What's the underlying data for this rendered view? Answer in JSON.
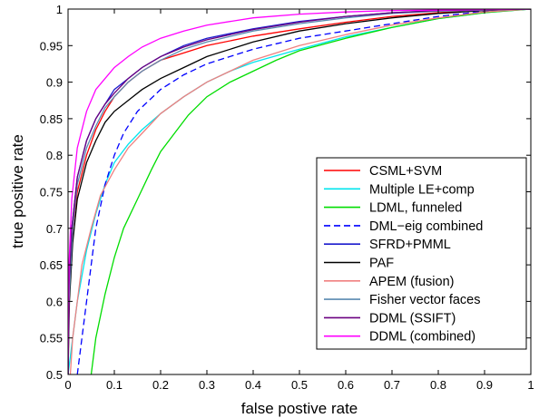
{
  "chart_data": {
    "type": "line",
    "xlabel": "false postive rate",
    "ylabel": "true positive rate",
    "xlim": [
      0,
      1
    ],
    "ylim": [
      0.5,
      1
    ],
    "x_ticks": [
      "0",
      "0.1",
      "0.2",
      "0.3",
      "0.4",
      "0.5",
      "0.6",
      "0.7",
      "0.8",
      "0.9",
      "1"
    ],
    "y_ticks": [
      "0.5",
      "0.55",
      "0.6",
      "0.65",
      "0.7",
      "0.75",
      "0.8",
      "0.85",
      "0.9",
      "0.95",
      "1"
    ],
    "grid": false,
    "legend_position": "bottom-right",
    "series": [
      {
        "name": "CSML+SVM",
        "color": "#ff0000",
        "dash": false,
        "points": [
          [
            0,
            0.5
          ],
          [
            0.002,
            0.6
          ],
          [
            0.01,
            0.7
          ],
          [
            0.02,
            0.75
          ],
          [
            0.04,
            0.8
          ],
          [
            0.06,
            0.835
          ],
          [
            0.08,
            0.86
          ],
          [
            0.1,
            0.88
          ],
          [
            0.13,
            0.9
          ],
          [
            0.16,
            0.915
          ],
          [
            0.2,
            0.93
          ],
          [
            0.25,
            0.94
          ],
          [
            0.3,
            0.95
          ],
          [
            0.4,
            0.963
          ],
          [
            0.5,
            0.973
          ],
          [
            0.6,
            0.982
          ],
          [
            0.7,
            0.99
          ],
          [
            0.8,
            0.995
          ],
          [
            0.9,
            0.998
          ],
          [
            1,
            1
          ]
        ]
      },
      {
        "name": "Multiple LE+comp",
        "color": "#00e5ee",
        "dash": false,
        "points": [
          [
            0,
            0.5
          ],
          [
            0.01,
            0.55
          ],
          [
            0.02,
            0.6
          ],
          [
            0.04,
            0.67
          ],
          [
            0.06,
            0.72
          ],
          [
            0.08,
            0.76
          ],
          [
            0.1,
            0.79
          ],
          [
            0.13,
            0.815
          ],
          [
            0.16,
            0.835
          ],
          [
            0.2,
            0.857
          ],
          [
            0.25,
            0.88
          ],
          [
            0.3,
            0.9
          ],
          [
            0.35,
            0.915
          ],
          [
            0.4,
            0.927
          ],
          [
            0.5,
            0.945
          ],
          [
            0.6,
            0.962
          ],
          [
            0.7,
            0.975
          ],
          [
            0.8,
            0.987
          ],
          [
            0.9,
            0.995
          ],
          [
            1,
            1
          ]
        ]
      },
      {
        "name": "LDML, funneled",
        "color": "#00dd00",
        "dash": false,
        "points": [
          [
            0.05,
            0.5
          ],
          [
            0.06,
            0.55
          ],
          [
            0.08,
            0.61
          ],
          [
            0.1,
            0.66
          ],
          [
            0.12,
            0.7
          ],
          [
            0.15,
            0.74
          ],
          [
            0.18,
            0.78
          ],
          [
            0.2,
            0.805
          ],
          [
            0.23,
            0.83
          ],
          [
            0.26,
            0.855
          ],
          [
            0.3,
            0.88
          ],
          [
            0.35,
            0.9
          ],
          [
            0.4,
            0.915
          ],
          [
            0.45,
            0.93
          ],
          [
            0.5,
            0.943
          ],
          [
            0.6,
            0.96
          ],
          [
            0.7,
            0.975
          ],
          [
            0.8,
            0.987
          ],
          [
            0.9,
            0.995
          ],
          [
            1,
            1
          ]
        ]
      },
      {
        "name": "DML−eig combined",
        "color": "#0000ff",
        "dash": true,
        "points": [
          [
            0.02,
            0.5
          ],
          [
            0.03,
            0.55
          ],
          [
            0.04,
            0.6
          ],
          [
            0.05,
            0.65
          ],
          [
            0.06,
            0.7
          ],
          [
            0.08,
            0.76
          ],
          [
            0.1,
            0.8
          ],
          [
            0.12,
            0.83
          ],
          [
            0.15,
            0.86
          ],
          [
            0.2,
            0.89
          ],
          [
            0.25,
            0.91
          ],
          [
            0.3,
            0.925
          ],
          [
            0.4,
            0.945
          ],
          [
            0.5,
            0.96
          ],
          [
            0.6,
            0.97
          ],
          [
            0.7,
            0.98
          ],
          [
            0.8,
            0.99
          ],
          [
            0.9,
            0.997
          ],
          [
            1,
            1
          ]
        ]
      },
      {
        "name": "SFRD+PMML",
        "color": "#1a1acd",
        "dash": false,
        "points": [
          [
            0,
            0.5
          ],
          [
            0.002,
            0.62
          ],
          [
            0.008,
            0.7
          ],
          [
            0.02,
            0.77
          ],
          [
            0.04,
            0.82
          ],
          [
            0.06,
            0.85
          ],
          [
            0.08,
            0.87
          ],
          [
            0.1,
            0.89
          ],
          [
            0.13,
            0.905
          ],
          [
            0.16,
            0.92
          ],
          [
            0.2,
            0.935
          ],
          [
            0.25,
            0.95
          ],
          [
            0.3,
            0.96
          ],
          [
            0.4,
            0.973
          ],
          [
            0.5,
            0.983
          ],
          [
            0.6,
            0.99
          ],
          [
            0.7,
            0.995
          ],
          [
            0.8,
            0.998
          ],
          [
            1,
            1
          ]
        ]
      },
      {
        "name": "PAF",
        "color": "#000000",
        "dash": false,
        "points": [
          [
            0,
            0.5
          ],
          [
            0.003,
            0.6
          ],
          [
            0.01,
            0.68
          ],
          [
            0.02,
            0.74
          ],
          [
            0.04,
            0.79
          ],
          [
            0.06,
            0.82
          ],
          [
            0.08,
            0.845
          ],
          [
            0.1,
            0.86
          ],
          [
            0.13,
            0.875
          ],
          [
            0.16,
            0.89
          ],
          [
            0.2,
            0.905
          ],
          [
            0.25,
            0.92
          ],
          [
            0.3,
            0.935
          ],
          [
            0.4,
            0.955
          ],
          [
            0.5,
            0.97
          ],
          [
            0.6,
            0.98
          ],
          [
            0.7,
            0.988
          ],
          [
            0.8,
            0.994
          ],
          [
            0.9,
            0.998
          ],
          [
            1,
            1
          ]
        ]
      },
      {
        "name": "APEM (fusion)",
        "color": "#f08080",
        "dash": false,
        "points": [
          [
            0.005,
            0.5
          ],
          [
            0.01,
            0.55
          ],
          [
            0.02,
            0.6
          ],
          [
            0.03,
            0.65
          ],
          [
            0.05,
            0.7
          ],
          [
            0.07,
            0.745
          ],
          [
            0.1,
            0.78
          ],
          [
            0.13,
            0.81
          ],
          [
            0.16,
            0.83
          ],
          [
            0.2,
            0.857
          ],
          [
            0.25,
            0.88
          ],
          [
            0.3,
            0.9
          ],
          [
            0.35,
            0.915
          ],
          [
            0.4,
            0.93
          ],
          [
            0.5,
            0.95
          ],
          [
            0.6,
            0.965
          ],
          [
            0.7,
            0.978
          ],
          [
            0.8,
            0.988
          ],
          [
            0.9,
            0.996
          ],
          [
            1,
            1
          ]
        ]
      },
      {
        "name": "Fisher vector faces",
        "color": "#5a8ab0",
        "dash": false,
        "points": [
          [
            0,
            0.5
          ],
          [
            0.002,
            0.6
          ],
          [
            0.01,
            0.7
          ],
          [
            0.02,
            0.76
          ],
          [
            0.04,
            0.81
          ],
          [
            0.06,
            0.84
          ],
          [
            0.08,
            0.865
          ],
          [
            0.1,
            0.88
          ],
          [
            0.13,
            0.9
          ],
          [
            0.16,
            0.915
          ],
          [
            0.2,
            0.93
          ],
          [
            0.25,
            0.945
          ],
          [
            0.3,
            0.955
          ],
          [
            0.4,
            0.97
          ],
          [
            0.5,
            0.98
          ],
          [
            0.6,
            0.988
          ],
          [
            0.7,
            0.994
          ],
          [
            0.8,
            0.997
          ],
          [
            1,
            1
          ]
        ]
      },
      {
        "name": "DDML (SSIFT)",
        "color": "#6a0080",
        "dash": false,
        "points": [
          [
            0,
            0.5
          ],
          [
            0.002,
            0.62
          ],
          [
            0.008,
            0.7
          ],
          [
            0.02,
            0.77
          ],
          [
            0.04,
            0.82
          ],
          [
            0.06,
            0.85
          ],
          [
            0.08,
            0.87
          ],
          [
            0.1,
            0.885
          ],
          [
            0.13,
            0.905
          ],
          [
            0.16,
            0.92
          ],
          [
            0.2,
            0.935
          ],
          [
            0.25,
            0.948
          ],
          [
            0.3,
            0.958
          ],
          [
            0.4,
            0.972
          ],
          [
            0.5,
            0.982
          ],
          [
            0.6,
            0.99
          ],
          [
            0.7,
            0.995
          ],
          [
            0.8,
            0.998
          ],
          [
            1,
            1
          ]
        ]
      },
      {
        "name": "DDML (combined)",
        "color": "#ff00ff",
        "dash": false,
        "points": [
          [
            0,
            0.5
          ],
          [
            0.002,
            0.65
          ],
          [
            0.008,
            0.74
          ],
          [
            0.02,
            0.81
          ],
          [
            0.04,
            0.86
          ],
          [
            0.06,
            0.89
          ],
          [
            0.08,
            0.905
          ],
          [
            0.1,
            0.92
          ],
          [
            0.13,
            0.935
          ],
          [
            0.16,
            0.948
          ],
          [
            0.2,
            0.96
          ],
          [
            0.25,
            0.97
          ],
          [
            0.3,
            0.978
          ],
          [
            0.4,
            0.988
          ],
          [
            0.5,
            0.993
          ],
          [
            0.6,
            0.996
          ],
          [
            0.7,
            0.998
          ],
          [
            1,
            1
          ]
        ]
      }
    ]
  }
}
